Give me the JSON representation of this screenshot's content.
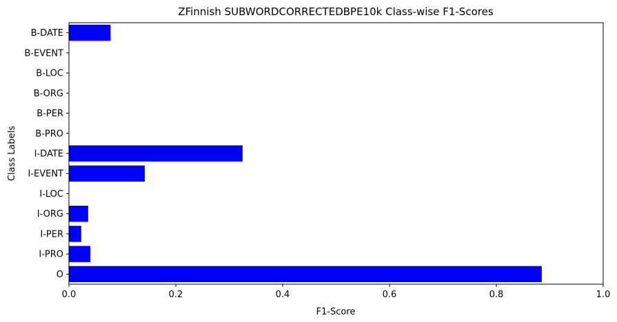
{
  "chart_data": {
    "type": "bar",
    "orientation": "horizontal",
    "title": "ZFinnish SUBWORDCORRECTEDBPE10k Class-wise F1-Scores",
    "xlabel": "F1-Score",
    "ylabel": "Class Labels",
    "xlim": [
      0,
      1.0
    ],
    "xticks": [
      "0.0",
      "0.2",
      "0.4",
      "0.6",
      "0.8",
      "1.0"
    ],
    "categories": [
      "B-DATE",
      "B-EVENT",
      "B-LOC",
      "B-ORG",
      "B-PER",
      "B-PRO",
      "I-DATE",
      "I-EVENT",
      "I-LOC",
      "I-ORG",
      "I-PER",
      "I-PRO",
      "O"
    ],
    "values": [
      0.078,
      0,
      0,
      0,
      0,
      0,
      0.325,
      0.142,
      0,
      0.036,
      0.023,
      0.04,
      0.885
    ],
    "bar_color": "#0000ff",
    "grid": false
  }
}
